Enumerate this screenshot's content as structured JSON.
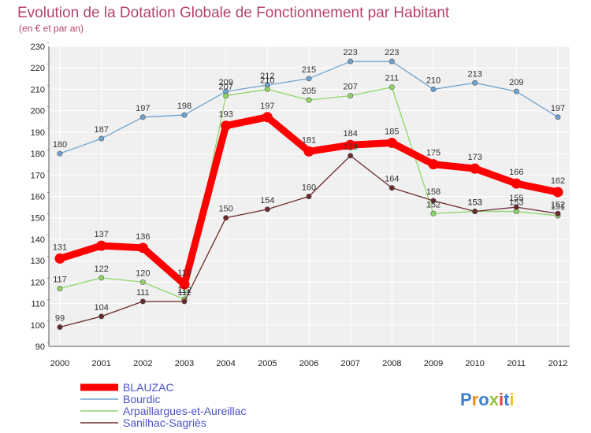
{
  "chart_data": {
    "type": "line",
    "title": "Evolution de la Dotation Globale de Fonctionnement par Habitant",
    "subtitle": "(en € et par an)",
    "xlabel": "",
    "ylabel": "",
    "categories": [
      "2000",
      "2001",
      "2002",
      "2003",
      "2004",
      "2005",
      "2006",
      "2007",
      "2008",
      "2009",
      "2010",
      "2011",
      "2012"
    ],
    "ylim": [
      90,
      230
    ],
    "yticks": [
      90,
      100,
      110,
      120,
      130,
      140,
      150,
      160,
      170,
      180,
      190,
      200,
      210,
      220,
      230
    ],
    "grid": true,
    "legend_position": "bottom-left",
    "series": [
      {
        "name": "Bourdic",
        "color": "#6fa3cf",
        "values": [
          180,
          187,
          197,
          198,
          209,
          212,
          215,
          223,
          223,
          210,
          213,
          209,
          197
        ]
      },
      {
        "name": "Arpaillargues-et-Aureillac",
        "color": "#8fd66a",
        "values": [
          117,
          122,
          120,
          112,
          207,
          210,
          205,
          207,
          211,
          152,
          153,
          153,
          151
        ]
      },
      {
        "name": "Sanilhac-Sagriès",
        "color": "#6b2a2a",
        "values": [
          99,
          104,
          111,
          111,
          150,
          154,
          160,
          179,
          164,
          158,
          153,
          155,
          152
        ]
      },
      {
        "name": "BLAUZAC",
        "color": "#ff0000",
        "values": [
          131,
          137,
          136,
          119,
          193,
          197,
          181,
          184,
          185,
          175,
          173,
          166,
          162
        ]
      }
    ],
    "legend_order": [
      "BLAUZAC",
      "Bourdic",
      "Arpaillargues-et-Aureillac",
      "Sanilhac-Sagriès"
    ]
  },
  "brand": {
    "text": "Proxiti"
  }
}
